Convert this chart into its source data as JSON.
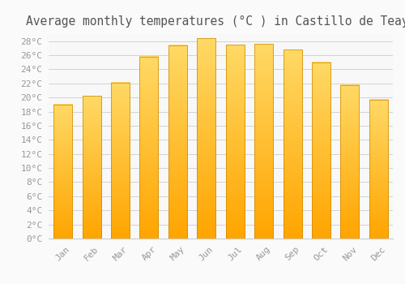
{
  "title": "Average monthly temperatures (°C ) in Castillo de Teayo",
  "months": [
    "Jan",
    "Feb",
    "Mar",
    "Apr",
    "May",
    "Jun",
    "Jul",
    "Aug",
    "Sep",
    "Oct",
    "Nov",
    "Dec"
  ],
  "values": [
    19.0,
    20.2,
    22.1,
    25.8,
    27.4,
    28.4,
    27.5,
    27.6,
    26.8,
    25.0,
    21.8,
    19.7
  ],
  "bar_color_top": "#FFD966",
  "bar_color_bottom": "#FFA500",
  "bar_edge_color": "#CC8800",
  "background_color": "#FAFAFA",
  "plot_bg_color": "#F8F8F8",
  "grid_color": "#CCCCCC",
  "title_color": "#555555",
  "tick_label_color": "#999999",
  "ylim": [
    0,
    29
  ],
  "yticks": [
    0,
    2,
    4,
    6,
    8,
    10,
    12,
    14,
    16,
    18,
    20,
    22,
    24,
    26,
    28
  ],
  "title_fontsize": 10.5,
  "tick_fontsize": 8,
  "figsize": [
    5.0,
    3.5
  ],
  "dpi": 100
}
